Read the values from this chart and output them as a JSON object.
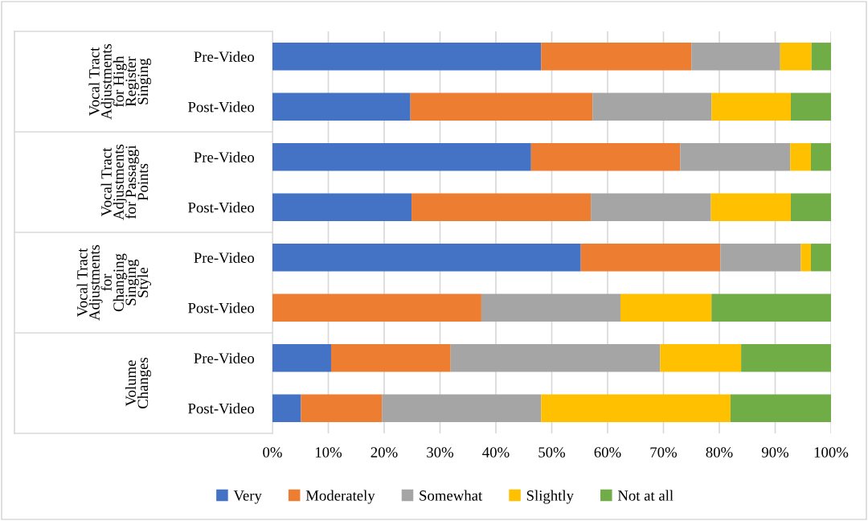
{
  "chart_data": {
    "type": "bar",
    "orientation": "horizontal",
    "stacked": true,
    "categories": [
      "Pre-Video",
      "Post-Video",
      "Pre-Video",
      "Post-Video",
      "Pre-Video",
      "Post-Video",
      "Pre-Video",
      "Post-Video"
    ],
    "annotations": [
      "Vocal Tract\nAdjustments\nfor High\nRegister\nSinging",
      "Vocal Tract\nAdjustments\nfor Passaggi\nPoints",
      "Vocal Tract\nAdjustments\nfor\nChanging\nSinging\nStyle",
      "Volume\nChanges"
    ],
    "series": [
      {
        "name": "Very",
        "color": "#4472c4",
        "values": [
          48.1,
          24.7,
          46.3,
          24.9,
          55.2,
          0,
          10.5,
          5.1
        ]
      },
      {
        "name": "Moderately",
        "color": "#ed7d31",
        "values": [
          26.9,
          32.6,
          26.7,
          32.1,
          25.0,
          37.4,
          21.4,
          14.5
        ]
      },
      {
        "name": "Somewhat",
        "color": "#a5a5a5",
        "values": [
          15.9,
          21.3,
          19.7,
          21.5,
          14.4,
          24.9,
          37.5,
          28.5
        ]
      },
      {
        "name": "Slightly",
        "color": "#ffc000",
        "values": [
          5.6,
          14.2,
          3.7,
          14.3,
          1.8,
          16.3,
          14.5,
          33.9
        ]
      },
      {
        "name": "Not at all",
        "color": "#70ad47",
        "values": [
          3.5,
          7.2,
          3.6,
          7.2,
          3.6,
          21.4,
          16.1,
          18.0
        ]
      }
    ],
    "xlim": [
      0,
      100
    ],
    "xticks": [
      {
        "value": 0,
        "label": "0%"
      },
      {
        "value": 10,
        "label": "10%"
      },
      {
        "value": 20,
        "label": "20%"
      },
      {
        "value": 30,
        "label": "30%"
      },
      {
        "value": 40,
        "label": "40%"
      },
      {
        "value": 50,
        "label": "50%"
      },
      {
        "value": 60,
        "label": "60%"
      },
      {
        "value": 70,
        "label": "70%"
      },
      {
        "value": 80,
        "label": "80%"
      },
      {
        "value": 90,
        "label": "90%"
      },
      {
        "value": 100,
        "label": "100%"
      }
    ],
    "grid": "x",
    "legend": "bottom"
  }
}
